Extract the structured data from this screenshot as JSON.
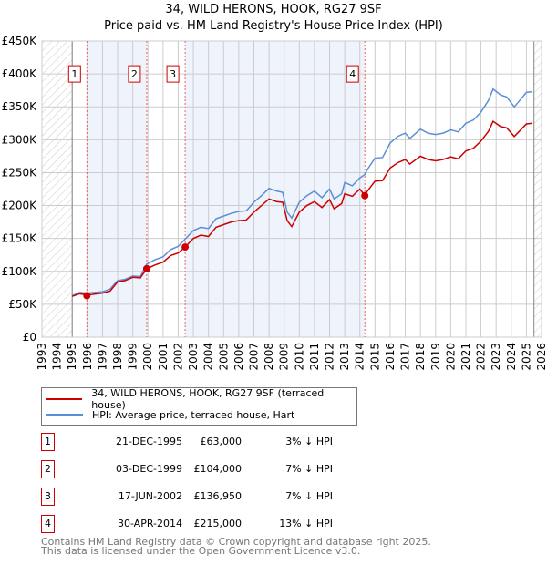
{
  "chart_data": {
    "type": "line",
    "title": "34, WILD HERONS, HOOK, RG27 9SF",
    "subtitle": "Price paid vs. HM Land Registry's House Price Index (HPI)",
    "xlim": [
      1993,
      2026
    ],
    "ylim": [
      0,
      450000
    ],
    "x_ticks": [
      "1993",
      "1994",
      "1995",
      "1996",
      "1997",
      "1998",
      "1999",
      "2000",
      "2001",
      "2002",
      "2003",
      "2004",
      "2005",
      "2006",
      "2007",
      "2008",
      "2009",
      "2010",
      "2011",
      "2012",
      "2013",
      "2014",
      "2015",
      "2016",
      "2017",
      "2018",
      "2019",
      "2020",
      "2021",
      "2022",
      "2023",
      "2024",
      "2025",
      "2026"
    ],
    "y_ticks": [
      {
        "v": 0,
        "label": "£0"
      },
      {
        "v": 50000,
        "label": "£50K"
      },
      {
        "v": 100000,
        "label": "£100K"
      },
      {
        "v": 150000,
        "label": "£150K"
      },
      {
        "v": 200000,
        "label": "£200K"
      },
      {
        "v": 250000,
        "label": "£250K"
      },
      {
        "v": 300000,
        "label": "£300K"
      },
      {
        "v": 350000,
        "label": "£350K"
      },
      {
        "v": 400000,
        "label": "£400K"
      },
      {
        "v": 450000,
        "label": "£450K"
      }
    ],
    "grid": true,
    "series": [
      {
        "name": "34, WILD HERONS, HOOK, RG27 9SF (terraced house)",
        "color": "#cc0000",
        "x": [
          1995,
          1995.5,
          1996,
          1997,
          1997.5,
          1998,
          1998.5,
          1999,
          1999.5,
          1999.92,
          2000.5,
          2001,
          2001.5,
          2002,
          2002.46,
          2003,
          2003.5,
          2004,
          2004.5,
          2005,
          2005.5,
          2006,
          2006.5,
          2007,
          2007.5,
          2008,
          2008.5,
          2008.9,
          2009.2,
          2009.5,
          2010,
          2010.5,
          2011,
          2011.5,
          2012,
          2012.3,
          2012.8,
          2013,
          2013.5,
          2014,
          2014.33,
          2014.5,
          2015,
          2015.5,
          2016,
          2016.5,
          2017,
          2017.3,
          2018,
          2018.5,
          2019,
          2019.5,
          2020,
          2020.5,
          2021,
          2021.5,
          2022,
          2022.5,
          2022.8,
          2023.3,
          2023.7,
          2024.2,
          2024.5,
          2025,
          2025.4
        ],
        "y": [
          62000,
          66000,
          64000,
          67000,
          70000,
          84000,
          86000,
          91000,
          90000,
          104000,
          110000,
          114000,
          124000,
          128000,
          136950,
          150000,
          155000,
          153000,
          167000,
          171000,
          175000,
          177000,
          178000,
          190000,
          200000,
          210000,
          206000,
          205000,
          177000,
          168000,
          190000,
          200000,
          206000,
          197000,
          209000,
          195000,
          203000,
          218000,
          214000,
          225000,
          215000,
          222000,
          237000,
          238000,
          257000,
          265000,
          270000,
          263000,
          275000,
          270000,
          268000,
          270000,
          274000,
          271000,
          283000,
          287000,
          298000,
          313000,
          328000,
          320000,
          318000,
          305000,
          312000,
          324000,
          325000
        ]
      },
      {
        "name": "HPI: Average price, terraced house, Hart",
        "color": "#5b8fd4",
        "x": [
          1995,
          1995.5,
          1996,
          1997,
          1997.5,
          1998,
          1998.5,
          1999,
          1999.5,
          1999.92,
          2000.5,
          2001,
          2001.5,
          2002,
          2002.46,
          2003,
          2003.5,
          2004,
          2004.5,
          2005,
          2005.5,
          2006,
          2006.5,
          2007,
          2007.5,
          2008,
          2008.5,
          2008.9,
          2009.2,
          2009.5,
          2010,
          2010.5,
          2011,
          2011.5,
          2012,
          2012.3,
          2012.8,
          2013,
          2013.5,
          2014,
          2014.33,
          2014.5,
          2015,
          2015.5,
          2016,
          2016.5,
          2017,
          2017.3,
          2018,
          2018.5,
          2019,
          2019.5,
          2020,
          2020.5,
          2021,
          2021.5,
          2022,
          2022.5,
          2022.8,
          2023.3,
          2023.7,
          2024.2,
          2024.5,
          2025,
          2025.4
        ],
        "y": [
          63000,
          68000,
          67000,
          69000,
          73000,
          86000,
          88000,
          93000,
          92000,
          111000,
          118000,
          122000,
          133000,
          138000,
          149000,
          162000,
          167000,
          165000,
          180000,
          184000,
          188000,
          191000,
          192000,
          205000,
          215000,
          226000,
          222000,
          220000,
          190000,
          181000,
          205000,
          215000,
          222000,
          212000,
          225000,
          210000,
          218000,
          235000,
          230000,
          242000,
          247000,
          255000,
          272000,
          273000,
          295000,
          305000,
          310000,
          302000,
          316000,
          310000,
          308000,
          310000,
          315000,
          312000,
          325000,
          330000,
          342000,
          360000,
          377000,
          368000,
          365000,
          350000,
          358000,
          372000,
          373000
        ]
      }
    ],
    "sales": [
      {
        "id": "1",
        "x": 1995.97,
        "price": 63000
      },
      {
        "id": "2",
        "x": 1999.92,
        "price": 104000
      },
      {
        "id": "3",
        "x": 2002.46,
        "price": 136950
      },
      {
        "id": "4",
        "x": 2014.33,
        "price": 215000
      }
    ],
    "shaded_ranges": [
      [
        1995.97,
        1999.92
      ],
      [
        2002.46,
        2014.33
      ]
    ],
    "hatched_ranges": [
      [
        1993,
        1995
      ],
      [
        2025.5,
        2026
      ]
    ]
  },
  "title": "34, WILD HERONS, HOOK, RG27 9SF",
  "subtitle": "Price paid vs. HM Land Registry's House Price Index (HPI)",
  "legend": {
    "red": "34, WILD HERONS, HOOK, RG27 9SF (terraced house)",
    "blue": "HPI: Average price, terraced house, Hart"
  },
  "table": [
    {
      "num": "1",
      "date": "21-DEC-1995",
      "price": "£63,000",
      "hpi": "3% ↓ HPI"
    },
    {
      "num": "2",
      "date": "03-DEC-1999",
      "price": "£104,000",
      "hpi": "7% ↓ HPI"
    },
    {
      "num": "3",
      "date": "17-JUN-2002",
      "price": "£136,950",
      "hpi": "7% ↓ HPI"
    },
    {
      "num": "4",
      "date": "30-APR-2014",
      "price": "£215,000",
      "hpi": "13% ↓ HPI"
    }
  ],
  "footer": {
    "line1": "Contains HM Land Registry data © Crown copyright and database right 2025.",
    "line2": "This data is licensed under the Open Government Licence v3.0."
  }
}
